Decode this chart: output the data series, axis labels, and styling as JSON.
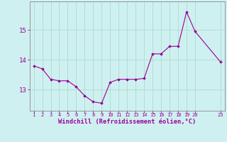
{
  "x": [
    1,
    2,
    3,
    4,
    5,
    6,
    7,
    8,
    9,
    10,
    11,
    12,
    13,
    14,
    15,
    16,
    17,
    18,
    19,
    20,
    23
  ],
  "y": [
    13.8,
    13.7,
    13.35,
    13.3,
    13.3,
    13.1,
    12.8,
    12.6,
    12.55,
    13.25,
    13.35,
    13.35,
    13.35,
    13.38,
    14.2,
    14.2,
    14.45,
    14.45,
    15.6,
    14.95,
    13.93
  ],
  "line_color": "#990099",
  "marker": "D",
  "marker_size": 1.8,
  "line_width": 0.8,
  "bg_color": "#cff0f0",
  "grid_color": "#aaddcc",
  "xlabel": "Windchill (Refroidissement éolien,°C)",
  "xlabel_color": "#990099",
  "tick_color": "#990099",
  "ylim": [
    12.3,
    15.95
  ],
  "yticks": [
    13,
    14,
    15
  ],
  "xlim": [
    0.5,
    23.5
  ],
  "xticks": [
    1,
    2,
    3,
    4,
    5,
    6,
    7,
    8,
    9,
    10,
    11,
    12,
    13,
    14,
    15,
    16,
    17,
    18,
    19,
    20,
    23
  ],
  "xtick_labels": [
    "1",
    "2",
    "3",
    "4",
    "5",
    "6",
    "7",
    "8",
    "9",
    "10",
    "11",
    "12",
    "13",
    "14",
    "15",
    "16",
    "17",
    "18",
    "19",
    "20",
    "23"
  ],
  "spine_color": "#888888",
  "title_color": "#990099"
}
